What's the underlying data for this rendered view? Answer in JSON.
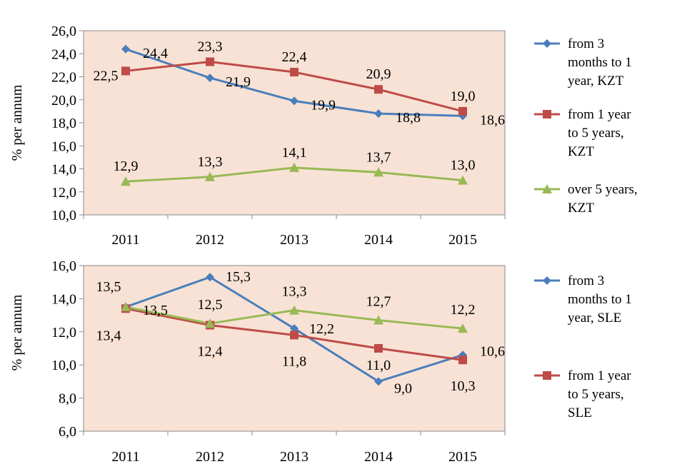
{
  "chart_data": [
    {
      "type": "line",
      "categories": [
        "2011",
        "2012",
        "2013",
        "2014",
        "2015"
      ],
      "ylabel": "% per annum",
      "ylim": [
        10.0,
        26.0
      ],
      "yticks": [
        "10,0",
        "12,0",
        "14,0",
        "16,0",
        "18,0",
        "20,0",
        "22,0",
        "24,0",
        "26,0"
      ],
      "legend": "right",
      "grid": false,
      "series": [
        {
          "name": "from 3 months to 1 year, KZT",
          "legend_lines": [
            "from 3",
            "months to 1",
            "year, KZT"
          ],
          "color": "#4a7ebb",
          "marker": "diamond",
          "values": [
            24.4,
            21.9,
            19.9,
            18.8,
            18.6
          ],
          "labels": [
            "24,4",
            "21,9",
            "19,9",
            "18,8",
            "18,6"
          ]
        },
        {
          "name": "from 1 year to 5 years, KZT",
          "legend_lines": [
            "from 1 year",
            "to 5 years,",
            "KZT"
          ],
          "color": "#be4b48",
          "marker": "square",
          "values": [
            22.5,
            23.3,
            22.4,
            20.9,
            19.0
          ],
          "labels": [
            "22,5",
            "23,3",
            "22,4",
            "20,9",
            "19,0"
          ]
        },
        {
          "name": "over 5 years, KZT",
          "legend_lines": [
            "over 5 years,",
            "KZT"
          ],
          "color": "#98b954",
          "marker": "triangle",
          "values": [
            12.9,
            13.3,
            14.1,
            13.7,
            13.0
          ],
          "labels": [
            "12,9",
            "13,3",
            "14,1",
            "13,7",
            "13,0"
          ]
        }
      ]
    },
    {
      "type": "line",
      "categories": [
        "2011",
        "2012",
        "2013",
        "2014",
        "2015"
      ],
      "ylabel": "% per annum",
      "ylim": [
        6.0,
        16.0
      ],
      "yticks": [
        "6,0",
        "8,0",
        "10,0",
        "12,0",
        "14,0",
        "16,0"
      ],
      "legend": "right",
      "grid": false,
      "series": [
        {
          "name": "from 3 months to 1 year, SLE",
          "legend_lines": [
            "from 3",
            "months to 1",
            "year, SLE"
          ],
          "color": "#4a7ebb",
          "marker": "diamond",
          "values": [
            13.5,
            15.3,
            12.2,
            9.0,
            10.6
          ],
          "labels": [
            "13,5",
            "15,3",
            "12,2",
            "9,0",
            "10,6"
          ]
        },
        {
          "name": "from 1 year to 5 years, SLE",
          "legend_lines": [
            "from 1 year",
            "to 5 years,",
            "SLE"
          ],
          "color": "#be4b48",
          "marker": "square",
          "values": [
            13.4,
            12.4,
            11.8,
            11.0,
            10.3
          ],
          "labels": [
            "13,4",
            "12,4",
            "11,8",
            "11,0",
            "10,3"
          ]
        },
        {
          "name": "",
          "legend_lines": [],
          "color": "#98b954",
          "marker": "triangle",
          "values": [
            13.5,
            12.5,
            13.3,
            12.7,
            12.2
          ],
          "labels": [
            "13,5",
            "12,5",
            "13,3",
            "12,7",
            "12,2"
          ]
        }
      ]
    }
  ]
}
